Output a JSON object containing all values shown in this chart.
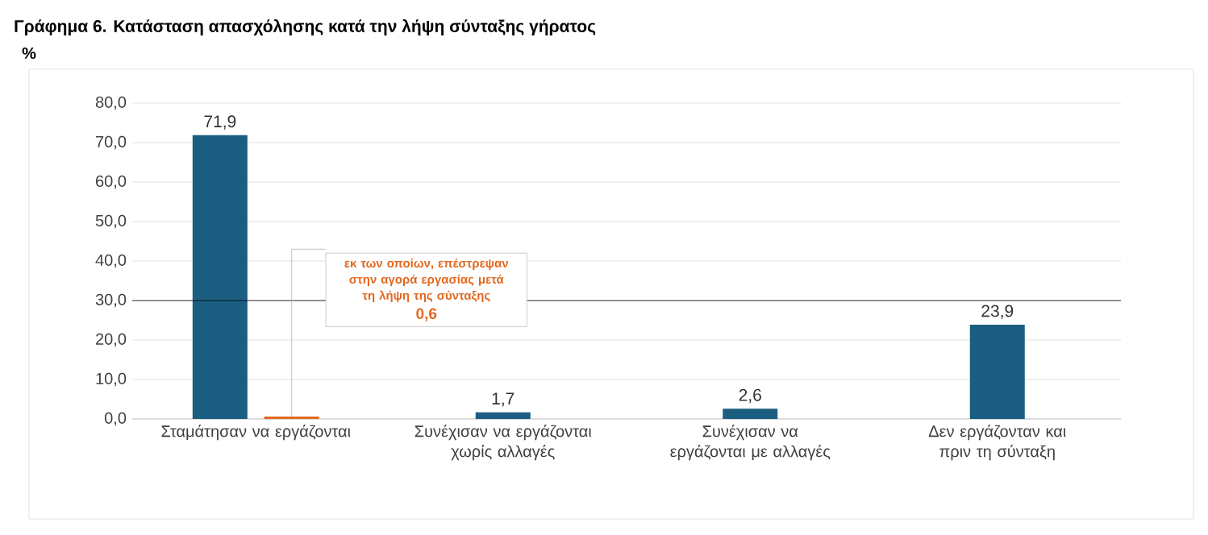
{
  "chart_data": {
    "type": "bar",
    "title": "Γράφημα 6. Κατάσταση απασχόλησης κατά την λήψη σύνταξης γήρατος",
    "ylabel": "%",
    "categories": [
      "Σταμάτησαν να εργάζονται",
      "Συνέχισαν να εργάζονται χωρίς αλλαγές",
      "Συνέχισαν να εργάζονται με αλλαγές",
      "Δεν εργάζονταν και πριν τη σύνταξη"
    ],
    "series": [
      {
        "color": "#1b5e82",
        "values": [
          71.9,
          1.7,
          2.6,
          23.9
        ],
        "value_labels": [
          "71,9",
          "1,7",
          "2,6",
          "23,9"
        ]
      },
      {
        "color": "#e2681f",
        "values": [
          0.6,
          null,
          null,
          null
        ]
      }
    ],
    "annotations": [
      "εκ των οποίων, επέστρεψαν στην αγορά εργασίας μετά τη λήψη της σύνταξης",
      "0,6"
    ],
    "ylim": [
      0,
      80
    ],
    "yticks": [
      {
        "value": 0,
        "label": "0,0"
      },
      {
        "value": 10,
        "label": "10,0"
      },
      {
        "value": 20,
        "label": "20,0"
      },
      {
        "value": 30,
        "label": "30,0"
      },
      {
        "value": 40,
        "label": "40,0"
      },
      {
        "value": 50,
        "label": "50,0"
      },
      {
        "value": 60,
        "label": "60,0"
      },
      {
        "value": 70,
        "label": "70,0"
      },
      {
        "value": 80,
        "label": "80,0"
      }
    ],
    "ref_lines": [
      {
        "axis": "y",
        "value": 30,
        "color": "#000000"
      }
    ],
    "grid": "y"
  }
}
